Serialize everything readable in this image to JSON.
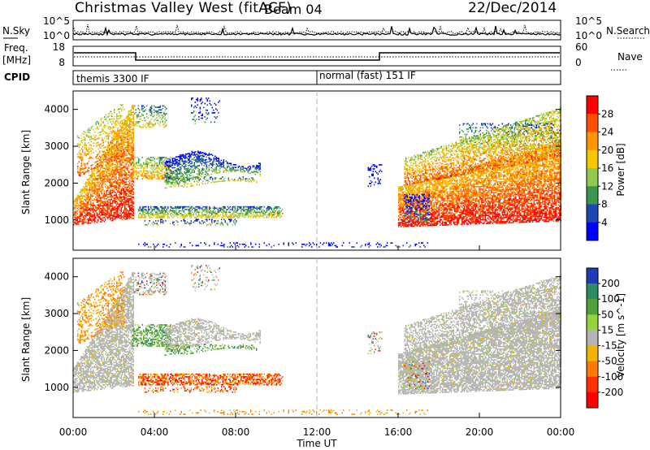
{
  "header": {
    "site": "Christmas Valley West (fitACF)",
    "beam": "Beam 04",
    "date": "22/Dec/2014"
  },
  "noise_panel": {
    "left_label": "N.Sky",
    "right_label": "N.Search",
    "left_ticks": [
      "10^5",
      "10^0"
    ],
    "right_ticks": [
      "10^5",
      "10^0"
    ]
  },
  "freq_panel": {
    "left_label_1": "Freq.",
    "left_label_2": "[MHz]",
    "right_label": "Nave",
    "left_ticks": [
      "18",
      "8"
    ],
    "right_ticks": [
      "60",
      "0"
    ]
  },
  "cpid_panel": {
    "label": "CPID",
    "modes": [
      {
        "name": "themis 3300 IF",
        "start_hour": 0,
        "end_hour": 12
      },
      {
        "name": "normal (fast) 151 IF",
        "start_hour": 12,
        "end_hour": 24
      }
    ]
  },
  "chart_data": [
    {
      "type": "heatmap",
      "title": "",
      "xlabel": "Time UT",
      "ylabel": "Slant Range [km]",
      "x_range_hours": [
        0,
        24
      ],
      "xticks": [
        "00:00",
        "04:00",
        "08:00",
        "12:00",
        "16:00",
        "20:00",
        "00:00"
      ],
      "ylim": [
        180,
        4500
      ],
      "yticks": [
        1000,
        2000,
        3000,
        4000
      ],
      "grid": false,
      "colorbar": {
        "label": "Power [dB]",
        "ticks": [
          "28",
          "24",
          "20",
          "16",
          "12",
          "8",
          "4"
        ],
        "colors": [
          "#ff0000",
          "#ff5000",
          "#ff9600",
          "#f5c800",
          "#91c850",
          "#3c9650",
          "#1e46b4",
          "#0000ff"
        ]
      }
    },
    {
      "type": "heatmap",
      "title": "",
      "xlabel": "Time UT",
      "ylabel": "Slant Range [km]",
      "x_range_hours": [
        0,
        24
      ],
      "xticks": [
        "00:00",
        "04:00",
        "08:00",
        "12:00",
        "16:00",
        "20:00",
        "00:00"
      ],
      "ylim": [
        180,
        4500
      ],
      "yticks": [
        1000,
        2000,
        3000,
        4000
      ],
      "grid": false,
      "colorbar": {
        "label": "Velocity [m s^-1]",
        "ticks": [
          "200",
          "100",
          "50",
          "15",
          "-15",
          "-50",
          "-100",
          "-200"
        ],
        "colors": [
          "#1e3cb4",
          "#2d8c64",
          "#50a03c",
          "#96d23c",
          "#b4b4b4",
          "#f0b400",
          "#ff7800",
          "#ff3200",
          "#ff0000"
        ]
      }
    }
  ],
  "colors": {
    "ground_scatter": "#b4b4b4",
    "marker_line": "#b0b0b0"
  }
}
